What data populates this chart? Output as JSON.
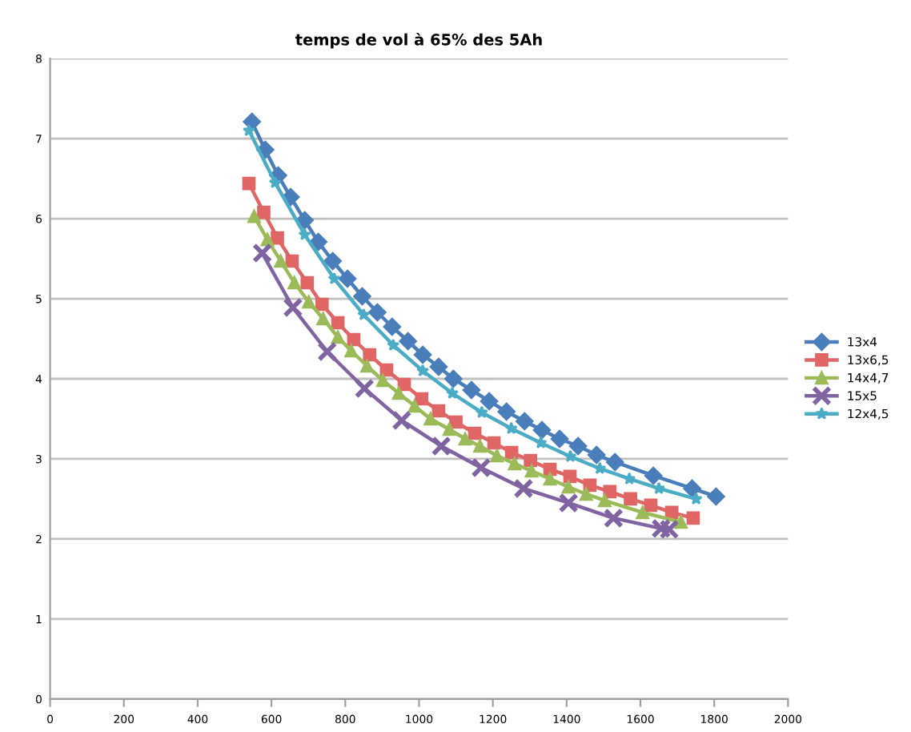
{
  "chart_data": {
    "type": "line",
    "title": "temps de vol à 65% des 5Ah",
    "xlim": [
      0,
      2000
    ],
    "xticks": [
      0,
      200,
      400,
      600,
      800,
      1000,
      1200,
      1400,
      1600,
      1800,
      2000
    ],
    "ylim": [
      0,
      8
    ],
    "yticks": [
      0,
      1,
      2,
      3,
      4,
      5,
      6,
      7,
      8
    ],
    "grid": "y",
    "legend": "right",
    "series": [
      {
        "name": "13x4",
        "color": "#4a7ebb",
        "marker": "diamond",
        "x": [
          547,
          583,
          618,
          652,
          690,
          727,
          766,
          806,
          846,
          887,
          927,
          970,
          1010,
          1053,
          1093,
          1142,
          1190,
          1237,
          1286,
          1333,
          1381,
          1431,
          1481,
          1531,
          1635,
          1740,
          1805
        ],
        "values": [
          7.21,
          6.86,
          6.54,
          6.27,
          5.98,
          5.71,
          5.47,
          5.25,
          5.03,
          4.83,
          4.65,
          4.47,
          4.3,
          4.15,
          4.0,
          3.86,
          3.72,
          3.59,
          3.47,
          3.36,
          3.25,
          3.16,
          3.05,
          2.96,
          2.79,
          2.63,
          2.53
        ]
      },
      {
        "name": "13x6,5",
        "color": "#e06666",
        "marker": "square",
        "x": [
          539,
          579,
          616,
          656,
          697,
          737,
          780,
          823,
          866,
          912,
          960,
          1007,
          1053,
          1100,
          1151,
          1203,
          1251,
          1302,
          1355,
          1409,
          1463,
          1517,
          1573,
          1628,
          1685,
          1743
        ],
        "values": [
          6.44,
          6.08,
          5.76,
          5.47,
          5.2,
          4.93,
          4.7,
          4.49,
          4.3,
          4.11,
          3.93,
          3.75,
          3.6,
          3.46,
          3.32,
          3.2,
          3.08,
          2.98,
          2.87,
          2.78,
          2.67,
          2.59,
          2.5,
          2.42,
          2.33,
          2.26
        ]
      },
      {
        "name": "14x4,7",
        "color": "#9bbb59",
        "marker": "triangle",
        "x": [
          553,
          589,
          625,
          662,
          701,
          740,
          780,
          816,
          859,
          902,
          945,
          988,
          1031,
          1082,
          1125,
          1165,
          1211,
          1259,
          1305,
          1355,
          1405,
          1453,
          1503,
          1606,
          1710
        ],
        "values": [
          6.03,
          5.74,
          5.47,
          5.2,
          4.96,
          4.75,
          4.52,
          4.35,
          4.16,
          3.98,
          3.82,
          3.66,
          3.5,
          3.37,
          3.25,
          3.16,
          3.04,
          2.94,
          2.85,
          2.75,
          2.65,
          2.56,
          2.48,
          2.33,
          2.21
        ]
      },
      {
        "name": "15x5",
        "color": "#8064a2",
        "marker": "cross",
        "x": [
          575,
          658,
          751,
          852,
          953,
          1060,
          1168,
          1283,
          1405,
          1527,
          1656,
          1678
        ],
        "values": [
          5.57,
          4.89,
          4.34,
          3.88,
          3.48,
          3.16,
          2.89,
          2.63,
          2.45,
          2.26,
          2.13,
          2.12
        ]
      },
      {
        "name": "12x4,5",
        "color": "#4bacc6",
        "marker": "star",
        "x": [
          539,
          610,
          690,
          770,
          850,
          930,
          1010,
          1090,
          1170,
          1250,
          1330,
          1410,
          1490,
          1570,
          1650,
          1751
        ],
        "values": [
          7.1,
          6.45,
          5.8,
          5.25,
          4.8,
          4.42,
          4.1,
          3.82,
          3.58,
          3.38,
          3.2,
          3.03,
          2.88,
          2.75,
          2.63,
          2.5
        ]
      }
    ]
  }
}
